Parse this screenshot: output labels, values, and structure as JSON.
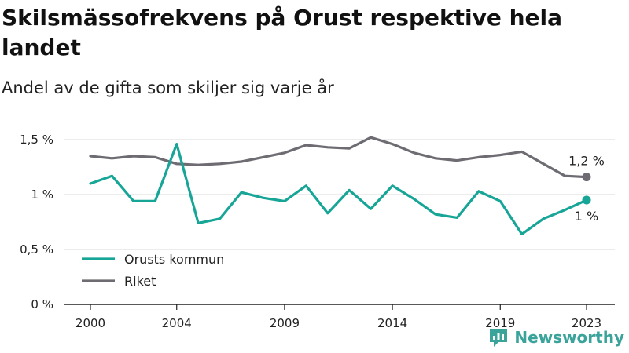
{
  "title": "Skilsmässofrekvens på Orust respektive hela landet",
  "subtitle": "Andel av de gifta som skiljer sig varje år",
  "brand": "Newsworthy",
  "colors": {
    "orust": "#16a596",
    "riket": "#6e6c72",
    "grid": "#d9d9d9",
    "axis": "#222222",
    "brand": "#3aa39a"
  },
  "chart_data": {
    "type": "line",
    "x": [
      2000,
      2001,
      2002,
      2003,
      2004,
      2005,
      2006,
      2007,
      2008,
      2009,
      2010,
      2011,
      2012,
      2013,
      2014,
      2015,
      2016,
      2017,
      2018,
      2019,
      2020,
      2021,
      2022,
      2023
    ],
    "x_ticks": [
      2000,
      2004,
      2009,
      2014,
      2019,
      2023
    ],
    "x_tick_labels": [
      "2000",
      "2004",
      "2009",
      "2014",
      "2019",
      "2023"
    ],
    "ylim": [
      0,
      1.5
    ],
    "y_ticks": [
      0,
      0.5,
      1,
      1.5
    ],
    "y_tick_labels": [
      "0 %",
      "0,5 %",
      "1 %",
      "1,5 %"
    ],
    "grid": true,
    "legend_position": "bottom-left",
    "series": [
      {
        "name": "Orusts kommun",
        "color_key": "orust",
        "values": [
          1.1,
          1.17,
          0.94,
          0.94,
          1.46,
          0.74,
          0.78,
          1.02,
          0.97,
          0.94,
          1.08,
          0.83,
          1.04,
          0.87,
          1.08,
          0.96,
          0.82,
          0.79,
          1.03,
          0.94,
          0.64,
          0.78,
          0.86,
          0.95
        ],
        "end_label": "1 %"
      },
      {
        "name": "Riket",
        "color_key": "riket",
        "values": [
          1.35,
          1.33,
          1.35,
          1.34,
          1.28,
          1.27,
          1.28,
          1.3,
          1.34,
          1.38,
          1.45,
          1.43,
          1.42,
          1.52,
          1.46,
          1.38,
          1.33,
          1.31,
          1.34,
          1.36,
          1.39,
          1.28,
          1.17,
          1.16
        ],
        "end_label": "1,2 %"
      }
    ]
  }
}
